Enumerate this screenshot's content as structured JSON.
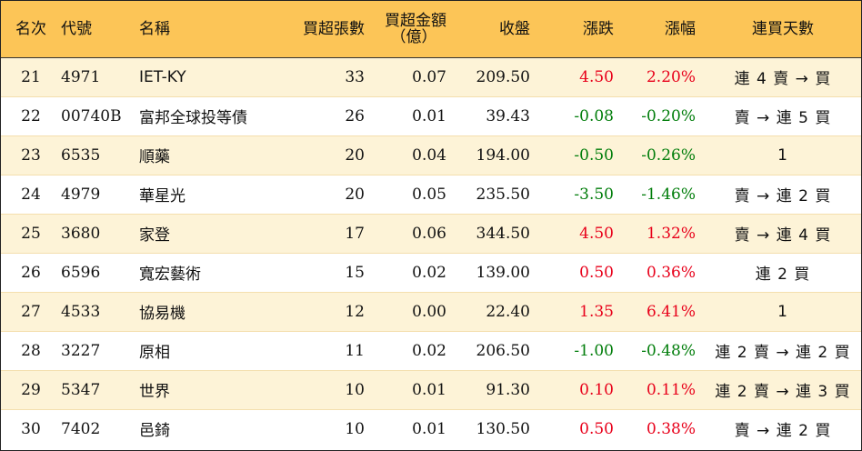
{
  "headers": {
    "rank": "名次",
    "code": "代號",
    "name": "名稱",
    "net_buy_lots": "買超張數",
    "net_buy_amount_line1": "買超金額",
    "net_buy_amount_line2": "（億）",
    "close": "收盤",
    "change": "漲跌",
    "change_pct": "漲幅",
    "consec_days": "連買天數"
  },
  "colors": {
    "header_bg": "#fcc557",
    "row_alt_bg": "#fdf3d7",
    "up": "#e8001a",
    "down": "#007d0a"
  },
  "rows": [
    {
      "rank": "21",
      "code": "4971",
      "name": "IET-KY",
      "lots": "33",
      "amount": "0.07",
      "close": "209.50",
      "change": "4.50",
      "pct": "2.20%",
      "dir": "up",
      "days": "連 4 賣 → 買"
    },
    {
      "rank": "22",
      "code": "00740B",
      "name": "富邦全球投等債",
      "lots": "26",
      "amount": "0.01",
      "close": "39.43",
      "change": "-0.08",
      "pct": "-0.20%",
      "dir": "down",
      "days": "賣 → 連 5 買"
    },
    {
      "rank": "23",
      "code": "6535",
      "name": "順藥",
      "lots": "20",
      "amount": "0.04",
      "close": "194.00",
      "change": "-0.50",
      "pct": "-0.26%",
      "dir": "down",
      "days": "1"
    },
    {
      "rank": "24",
      "code": "4979",
      "name": "華星光",
      "lots": "20",
      "amount": "0.05",
      "close": "235.50",
      "change": "-3.50",
      "pct": "-1.46%",
      "dir": "down",
      "days": "賣 → 連 2 買"
    },
    {
      "rank": "25",
      "code": "3680",
      "name": "家登",
      "lots": "17",
      "amount": "0.06",
      "close": "344.50",
      "change": "4.50",
      "pct": "1.32%",
      "dir": "up",
      "days": "賣 → 連 4 買"
    },
    {
      "rank": "26",
      "code": "6596",
      "name": "寬宏藝術",
      "lots": "15",
      "amount": "0.02",
      "close": "139.00",
      "change": "0.50",
      "pct": "0.36%",
      "dir": "up",
      "days": "連 2 買"
    },
    {
      "rank": "27",
      "code": "4533",
      "name": "協易機",
      "lots": "12",
      "amount": "0.00",
      "close": "22.40",
      "change": "1.35",
      "pct": "6.41%",
      "dir": "up",
      "days": "1"
    },
    {
      "rank": "28",
      "code": "3227",
      "name": "原相",
      "lots": "11",
      "amount": "0.02",
      "close": "206.50",
      "change": "-1.00",
      "pct": "-0.48%",
      "dir": "down",
      "days": "連 2 賣 → 連 2 買"
    },
    {
      "rank": "29",
      "code": "5347",
      "name": "世界",
      "lots": "10",
      "amount": "0.01",
      "close": "91.30",
      "change": "0.10",
      "pct": "0.11%",
      "dir": "up",
      "days": "連 2 賣 → 連 3 買"
    },
    {
      "rank": "30",
      "code": "7402",
      "name": "邑錡",
      "lots": "10",
      "amount": "0.01",
      "close": "130.50",
      "change": "0.50",
      "pct": "0.38%",
      "dir": "up",
      "days": "賣 → 連 2 買"
    }
  ]
}
